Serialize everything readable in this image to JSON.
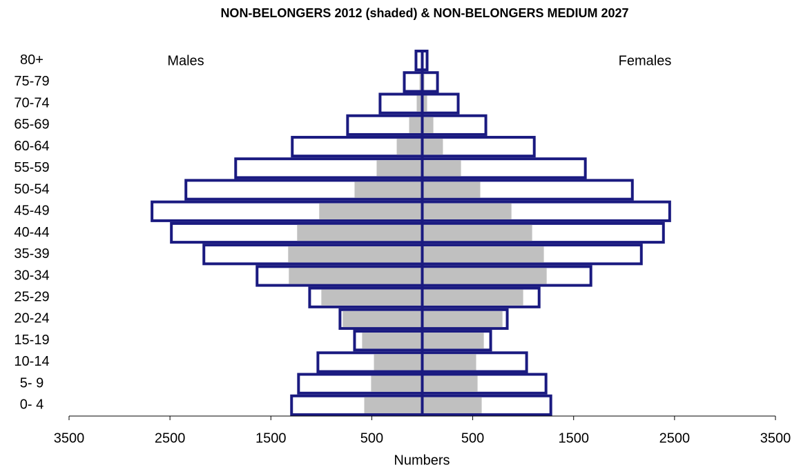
{
  "chart_data": {
    "type": "pyramid",
    "title": "NON-BELONGERS 2012 (shaded) & NON-BELONGERS  MEDIUM 2027",
    "x_label": "Numbers",
    "annotations": [
      "Males",
      "Females"
    ],
    "categories": [
      "0- 4",
      "5- 9",
      "10-14",
      "15-19",
      "20-24",
      "25-29",
      "30-34",
      "35-39",
      "40-44",
      "45-49",
      "50-54",
      "55-59",
      "60-64",
      "65-69",
      "70-74",
      "75-79",
      "80+"
    ],
    "series": [
      {
        "side": "left",
        "fill": "#ffffff",
        "stroke": "#1a1a80",
        "values": [
          1295,
          1226,
          1034,
          671,
          815,
          1116,
          1637,
          2164,
          2486,
          2678,
          2342,
          1849,
          1288,
          740,
          418,
          178,
          62
        ]
      },
      {
        "side": "right",
        "fill": "#ffffff",
        "stroke": "#1a1a80",
        "values": [
          1274,
          1226,
          1034,
          678,
          842,
          1158,
          1671,
          2171,
          2390,
          2452,
          2082,
          1616,
          1110,
          630,
          356,
          151,
          48
        ]
      },
      {
        "side": "left",
        "fill": "#c0c0c0",
        "values": [
          575,
          507,
          479,
          596,
          788,
          1000,
          1322,
          1329,
          1240,
          1021,
          671,
          452,
          253,
          130,
          55,
          27,
          14
        ]
      },
      {
        "side": "right",
        "fill": "#c0c0c0",
        "values": [
          589,
          548,
          534,
          610,
          795,
          1000,
          1233,
          1205,
          1089,
          884,
          575,
          384,
          205,
          110,
          48,
          21,
          7
        ]
      }
    ],
    "xlim": [
      -3500,
      3500
    ],
    "xticks": [
      {
        "value": -3500,
        "label": "3500"
      },
      {
        "value": -2500,
        "label": "2500"
      },
      {
        "value": -1500,
        "label": "1500"
      },
      {
        "value": -500,
        "label": "500"
      },
      500,
      1500,
      2500,
      3500
    ],
    "axis_color": "#1a1a80"
  }
}
